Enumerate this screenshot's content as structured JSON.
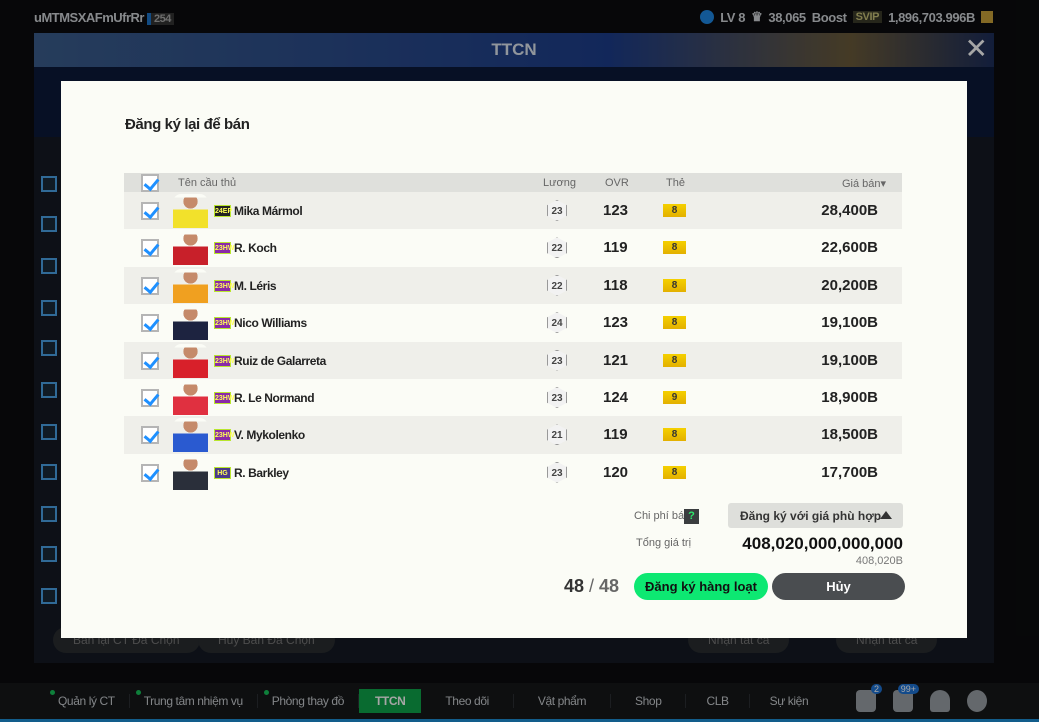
{
  "topbar": {
    "username": "uMTMSXAFmUfrRr",
    "user_level": "254",
    "lv": "LV 8",
    "points": "38,065",
    "boost": "Boost",
    "svip": "SVIP",
    "balance": "1,896,703.996B"
  },
  "window": {
    "title": "TTCN",
    "bg_buttons": [
      "Bán lại CT Đã Chọn",
      "Hủy Bán Đã Chọn",
      "Nhận tất cả",
      "Nhận tất cả"
    ]
  },
  "modal": {
    "title": "Đăng ký lại để bán",
    "columns": {
      "name": "Tên cầu thủ",
      "salary": "Lương",
      "ovr": "OVR",
      "card": "Thẻ",
      "price": "Giá bán▾"
    },
    "players": [
      {
        "season": "24EP",
        "season_color": "#222",
        "name": "Mika Mármol",
        "salary": "23",
        "ovr": "123",
        "card": "8",
        "price": "28,400B",
        "kit": "#f2e12b"
      },
      {
        "season": "23HW",
        "season_color": "#8a2aa8",
        "name": "R. Koch",
        "salary": "22",
        "ovr": "119",
        "card": "8",
        "price": "22,600B",
        "kit": "#c8202a"
      },
      {
        "season": "23HW",
        "season_color": "#8a2aa8",
        "name": "M. Léris",
        "salary": "22",
        "ovr": "118",
        "card": "8",
        "price": "20,200B",
        "kit": "#f0a020"
      },
      {
        "season": "23HW",
        "season_color": "#8a2aa8",
        "name": "Nico Williams",
        "salary": "24",
        "ovr": "123",
        "card": "8",
        "price": "19,100B",
        "kit": "#1d2340"
      },
      {
        "season": "23HW",
        "season_color": "#8a2aa8",
        "name": "Ruiz de Galarreta",
        "salary": "23",
        "ovr": "121",
        "card": "8",
        "price": "19,100B",
        "kit": "#d8202a"
      },
      {
        "season": "23HW",
        "season_color": "#8a2aa8",
        "name": "R. Le Normand",
        "salary": "23",
        "ovr": "124",
        "card": "9",
        "price": "18,900B",
        "kit": "#e03040"
      },
      {
        "season": "23HW",
        "season_color": "#8a2aa8",
        "name": "V. Mykolenko",
        "salary": "21",
        "ovr": "119",
        "card": "8",
        "price": "18,500B",
        "kit": "#2a5ad0"
      },
      {
        "season": "HG",
        "season_color": "#4a3a8a",
        "name": "R. Barkley",
        "salary": "23",
        "ovr": "120",
        "card": "8",
        "price": "17,700B",
        "kit": "#2a2f3a"
      }
    ],
    "fee_label": "Chi phí bá",
    "help": "?",
    "price_option": "Đăng ký với giá phù hợp",
    "total_label": "Tổng giá trị",
    "total_value": "408,020,000,000,000",
    "total_short": "408,020B",
    "count_selected": "48",
    "count_total": "48",
    "confirm": "Đăng ký hàng loạt",
    "cancel": "Hủy"
  },
  "nav": {
    "items": [
      "Quản lý CT",
      "Trung tâm nhiệm vụ",
      "Phòng thay đồ",
      "TTCN",
      "Theo dõi",
      "Vật phẩm",
      "Shop",
      "CLB",
      "Sự kiện"
    ],
    "badge_mail": "2",
    "badge_notif": "99+"
  },
  "colors": {
    "accent_green": "#0de872",
    "checkbox_blue": "#1e90ff",
    "nav_active": "#0ea54a"
  }
}
